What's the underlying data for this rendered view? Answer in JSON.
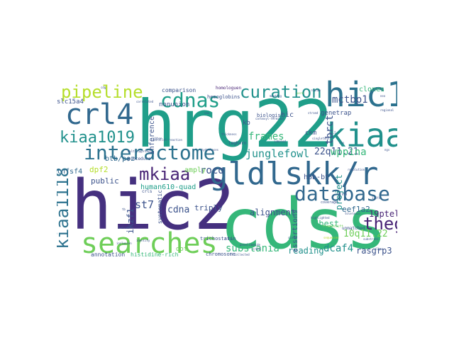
{
  "palette": {
    "dark_purple": "#45307f",
    "purple": "#482475",
    "indigo": "#3b528b",
    "blue": "#31688e",
    "steel": "#2c728e",
    "teal": "#21918c",
    "sea": "#1f9e89",
    "green": "#35b779",
    "lime": "#6ece58",
    "yellow_green": "#b5de2b",
    "yellow": "#fde725"
  },
  "words": [
    "hrg22",
    "hic2",
    "cdss",
    "gldlskk/r",
    "hic1",
    "kiaa",
    "crl4",
    "searches",
    "interactome",
    "database",
    "cdnas",
    "curation",
    "pipeline",
    "kiaa1019",
    "kiaa1118",
    "mkiaa",
    "theg",
    "junglefowl",
    "frames",
    "22q11.21",
    "wppina",
    "mctbp1",
    "tbrct",
    "st7",
    "cdna",
    "roco",
    "substania",
    "dcaf4",
    "19ptel",
    "10q11.22",
    "alignment",
    "dbest",
    "project",
    "eef1a2",
    "rasgrp3",
    "reading",
    "ikzf1",
    "public",
    "human610-quad",
    "dpf2",
    "tnfsf4",
    "btb/poz",
    "triply",
    "amply",
    "inference",
    "hic",
    "kb",
    "ckm",
    "hbb-bt",
    "genetrap",
    "clones",
    "slc15a4",
    "comparison",
    "nonunion",
    "biologist",
    "homologuen",
    "assertions",
    "annotation",
    "histidine-rich",
    "chromosome",
    "trichostatin",
    "systematic",
    "leghorn",
    "procedure",
    "hemoglobins",
    "dot",
    "rosnav",
    "crls",
    "unmatched",
    "coverage",
    "multi-approach",
    "frameshift",
    "sequences",
    "singletons",
    "highlighted",
    "perm",
    "resolution",
    "penalidomide",
    "meeting",
    "regional",
    "identity",
    "correlated",
    "inclusion",
    "ribbon",
    "strand",
    "tolerance",
    "substrate",
    "indices",
    "sixth",
    "labeled",
    "carboxyl-terminal",
    "thickness",
    "parallel-reaction",
    "hydrolases",
    "collected",
    "c1bpc",
    "nr6a1",
    "1-4fa",
    "1-6fa",
    "h6.5",
    "rsv",
    "gvg",
    "cdg",
    "tb",
    "cav",
    "neo",
    "ngs"
  ]
}
